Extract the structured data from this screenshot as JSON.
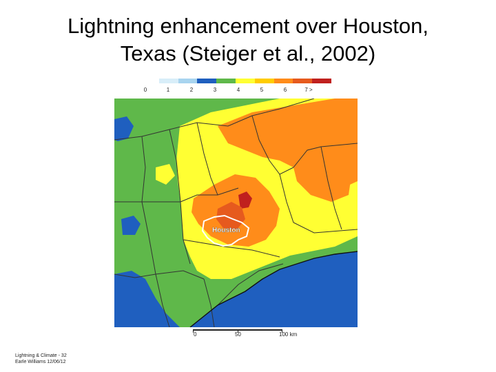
{
  "title": {
    "line1": "Lightning enhancement over Houston,",
    "line2": "Texas  (Steiger et al., 2002)"
  },
  "legend": {
    "ticks": [
      "0",
      "1",
      "2",
      "3",
      "4",
      "5",
      "6",
      "7 >"
    ],
    "colors": [
      "#ffffff",
      "#bfe3f5",
      "#a8d4ef",
      "#1f5fbf",
      "#5fb84a",
      "#ffff33",
      "#ffcc00",
      "#ff8c1a",
      "#e65a1e",
      "#c0201e"
    ]
  },
  "map": {
    "label": "Houston"
  },
  "scale": {
    "labels": [
      "0",
      "50",
      "100  km"
    ]
  },
  "footer": {
    "line1": "Lightning & Climate -  32",
    "line2": "Earle Williams 12/06/12"
  }
}
